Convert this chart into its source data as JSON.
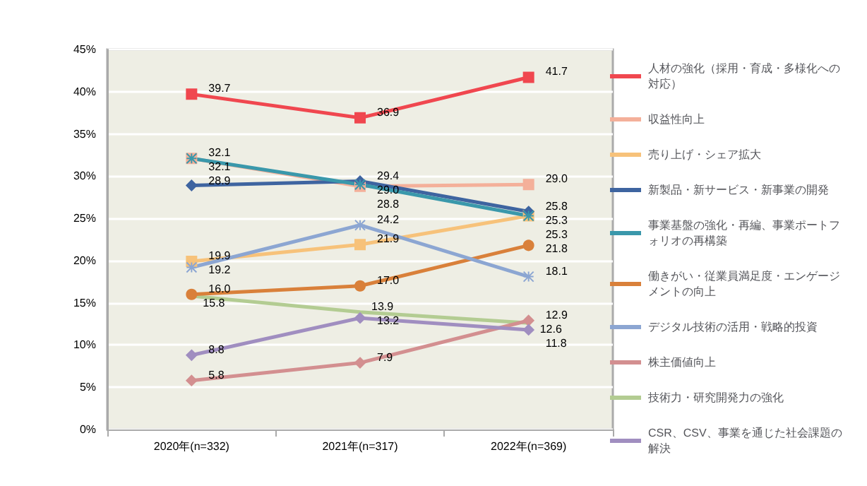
{
  "chart_data": {
    "type": "line",
    "categories": [
      "2020年(n=332)",
      "2021年(n=317)",
      "2022年(n=369)"
    ],
    "series": [
      {
        "name": "人材の強化（採用・育成・多様化への対応）",
        "color": "#f0474f",
        "marker": "square",
        "values": [
          39.7,
          36.9,
          41.7
        ],
        "value_labels": [
          "39.7",
          "36.9",
          "41.7"
        ]
      },
      {
        "name": "収益性向上",
        "color": "#f4b09a",
        "marker": "square",
        "values": [
          32.1,
          28.8,
          29.0
        ],
        "value_labels": [
          "32.1",
          "28.8",
          "29.0"
        ]
      },
      {
        "name": "売り上げ・シェア拡大",
        "color": "#f7c27a",
        "marker": "square",
        "values": [
          19.9,
          21.9,
          25.3
        ],
        "value_labels": [
          "19.9",
          "21.9",
          "25.3"
        ]
      },
      {
        "name": "新製品・新サービス・新事業の開発",
        "color": "#3e64a0",
        "marker": "diamond",
        "values": [
          28.9,
          29.4,
          25.8
        ],
        "value_labels": [
          "28.9",
          "29.4",
          "25.8"
        ]
      },
      {
        "name": "事業基盤の強化・再編、事業ポートフォリオの再構築",
        "color": "#3a98ab",
        "marker": "cross",
        "values": [
          32.1,
          29.0,
          25.3
        ],
        "value_labels": [
          "32.1",
          "29.0",
          "25.3"
        ]
      },
      {
        "name": "働きがい・従業員満足度・エンゲージメントの向上",
        "color": "#d9803a",
        "marker": "circle",
        "values": [
          16.0,
          17.0,
          21.8
        ],
        "value_labels": [
          "16.0",
          "17.0",
          "21.8"
        ]
      },
      {
        "name": "デジタル技術の活用・戦略的投資",
        "color": "#8ca6d2",
        "marker": "cross",
        "values": [
          19.2,
          24.2,
          18.1
        ],
        "value_labels": [
          "19.2",
          "24.2",
          "18.1"
        ]
      },
      {
        "name": "株主価値向上",
        "color": "#d38f90",
        "marker": "diamond",
        "values": [
          5.8,
          7.9,
          12.9
        ],
        "value_labels": [
          "5.8",
          "7.9",
          "12.9"
        ]
      },
      {
        "name": "技術力・研究開発力の強化",
        "color": "#b3cc92",
        "marker": "none",
        "values": [
          15.8,
          13.9,
          12.6
        ],
        "value_labels": [
          "15.8",
          "13.9",
          "12.6"
        ]
      },
      {
        "name": "CSR、CSV、事業を通じた社会課題の解決",
        "color": "#a08ec0",
        "marker": "diamond",
        "values": [
          8.8,
          13.2,
          11.8
        ],
        "value_labels": [
          "8.8",
          "13.2",
          "11.8"
        ]
      }
    ],
    "ylim": [
      0,
      45
    ],
    "yticks": [
      {
        "value": 0,
        "label": "0%"
      },
      {
        "value": 5,
        "label": "5%"
      },
      {
        "value": 10,
        "label": "10%"
      },
      {
        "value": 15,
        "label": "15%"
      },
      {
        "value": 20,
        "label": "20%"
      },
      {
        "value": 25,
        "label": "25%"
      },
      {
        "value": 30,
        "label": "30%"
      },
      {
        "value": 35,
        "label": "35%"
      },
      {
        "value": 40,
        "label": "40%"
      },
      {
        "value": 45,
        "label": "45%"
      }
    ],
    "grid": "y",
    "legend": "right"
  }
}
